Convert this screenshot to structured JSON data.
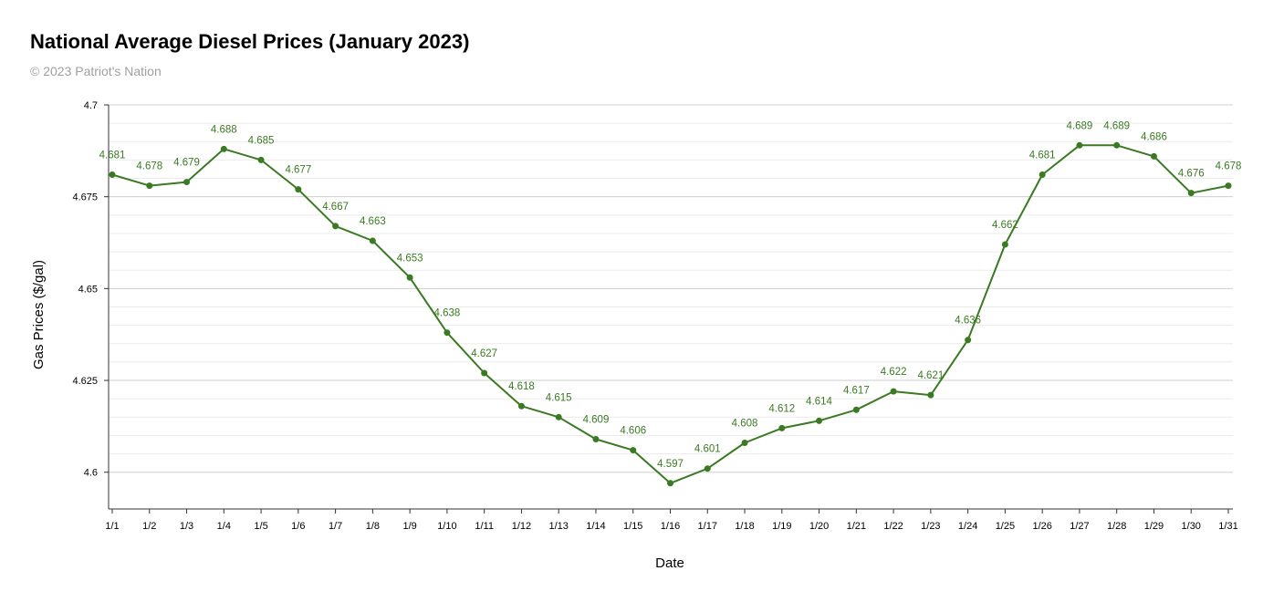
{
  "chart_data": {
    "type": "line",
    "title": "National Average Diesel Prices (January 2023)",
    "subtitle": "© 2023 Patriot's Nation",
    "xlabel": "Date",
    "ylabel": "Gas Prices ($/gal)",
    "ylim": [
      4.59,
      4.7
    ],
    "yticks": [
      "4.6",
      "4.625",
      "4.65",
      "4.675",
      "4.7"
    ],
    "grid": true,
    "legend": "none",
    "color": "#3a7a22",
    "categories": [
      "1/1",
      "1/2",
      "1/3",
      "1/4",
      "1/5",
      "1/6",
      "1/7",
      "1/8",
      "1/9",
      "1/10",
      "1/11",
      "1/12",
      "1/13",
      "1/14",
      "1/15",
      "1/16",
      "1/17",
      "1/18",
      "1/19",
      "1/20",
      "1/21",
      "1/22",
      "1/23",
      "1/24",
      "1/25",
      "1/26",
      "1/27",
      "1/28",
      "1/29",
      "1/30",
      "1/31"
    ],
    "values": [
      4.681,
      4.678,
      4.679,
      4.688,
      4.685,
      4.677,
      4.667,
      4.663,
      4.653,
      4.638,
      4.627,
      4.618,
      4.615,
      4.609,
      4.606,
      4.597,
      4.601,
      4.608,
      4.612,
      4.614,
      4.617,
      4.622,
      4.621,
      4.636,
      4.662,
      4.681,
      4.689,
      4.689,
      4.686,
      4.676,
      4.678
    ],
    "labels": [
      "4.681",
      "4.678",
      "4.679",
      "4.688",
      "4.685",
      "4.677",
      "4.667",
      "4.663",
      "4.653",
      "4.638",
      "4.627",
      "4.618",
      "4.615",
      "4.609",
      "4.606",
      "4.597",
      "4.601",
      "4.608",
      "4.612",
      "4.614",
      "4.617",
      "4.622",
      "4.621",
      "4.636",
      "4.662",
      "4.681",
      "4.689",
      "4.689",
      "4.686",
      "4.676",
      "4.678"
    ]
  }
}
